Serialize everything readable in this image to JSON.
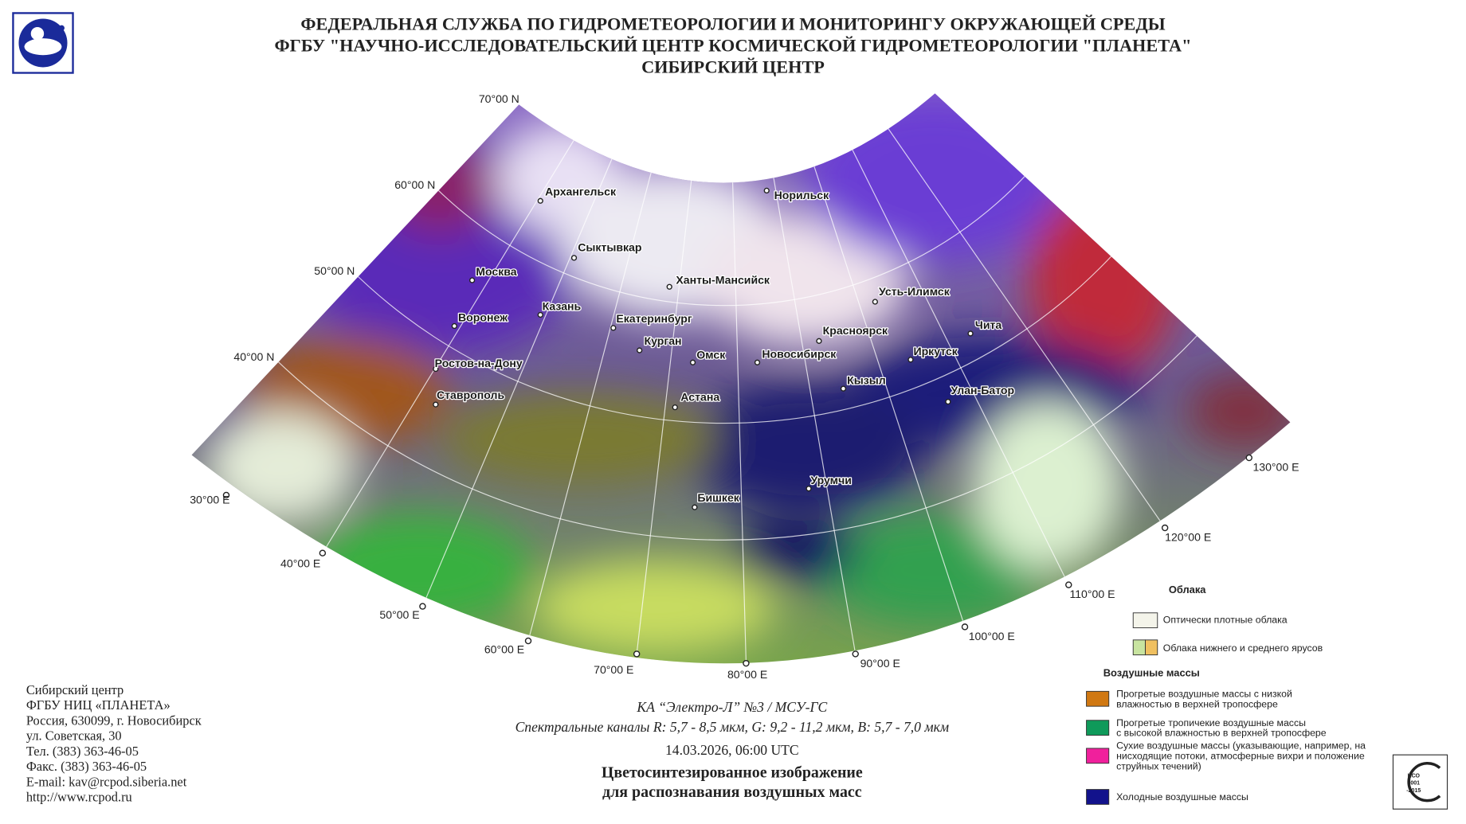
{
  "header": {
    "lines": [
      "ФЕДЕРАЛЬНАЯ СЛУЖБА ПО ГИДРОМЕТЕОРОЛОГИИ И МОНИТОРИНГУ ОКРУЖАЮЩЕЙ СРЕДЫ",
      "ФГБУ \"НАУЧНО-ИССЛЕДОВАТЕЛЬСКИЙ ЦЕНТР КОСМИЧЕСКОЙ ГИДРОМЕТЕОРОЛОГИИ \"ПЛАНЕТА\"",
      "СИБИРСКИЙ ЦЕНТР"
    ]
  },
  "map": {
    "latitudes": [
      "70°00 N",
      "60°00 N",
      "50°00 N",
      "40°00 N"
    ],
    "longitudes": [
      "30°00 E",
      "40°00 E",
      "50°00 E",
      "60°00 E",
      "70°00 E",
      "80°00 E",
      "90°00 E",
      "100°00 E",
      "110°00 E",
      "120°00 E",
      "130°00 E"
    ],
    "cities": [
      "Архангельск",
      "Сыктывкар",
      "Норильск",
      "Москва",
      "Ханты-Мансийск",
      "Усть-Илимск",
      "Казань",
      "Екатеринбург",
      "Воронеж",
      "Красноярск",
      "Чита",
      "Курган",
      "Омск",
      "Новосибирск",
      "Иркутск",
      "Ростов-на-Дону",
      "Кызыл",
      "Улан-Батор",
      "Ставрополь",
      "Астана",
      "Урумчи",
      "Бишкек"
    ]
  },
  "legend": {
    "clouds_title": "Облака",
    "clouds": [
      "Оптически плотные облака",
      "Облака нижнего и среднего ярусов"
    ],
    "air_masses_title": "Воздушные массы",
    "air_masses": [
      {
        "color": "#d07812",
        "lines": [
          "Прогретые воздушные массы с низкой",
          "влажностью в верхней тропосфере"
        ]
      },
      {
        "color": "#0f9a5a",
        "lines": [
          "Прогретые тропичекие воздушные массы",
          "с высокой влажностью в верхней тропосфере"
        ]
      },
      {
        "color": "#f0209c",
        "lines": [
          "Сухие воздушные массы (указывающие, например, на",
          "нисходящие потоки, атмосферные вихри и положение",
          "струйных течений)"
        ]
      },
      {
        "color": "#12128c",
        "lines": [
          "Холодные воздушные массы"
        ]
      }
    ]
  },
  "contact": [
    "Сибирский центр",
    "ФГБУ НИЦ «ПЛАНЕТА»",
    "Россия, 630099, г. Новосибирск",
    "ул. Советская, 30",
    "Тел. (383) 363-46-05",
    "Факс. (383) 363-46-05",
    "E-mail: kav@rcpod.siberia.net",
    "http://www.rcpod.ru"
  ],
  "caption": {
    "satellite": "КА “Электро-Л” №3 / МСУ-ГС",
    "channels": "Спектральные каналы R: 5,7 - 8,5 мкм, G: 9,2 - 11,2 мкм, B: 5,7 - 7,0 мкм",
    "datetime": "14.03.2026, 06:00 UTC",
    "title_lines": [
      "Цветосинтезированное изображение",
      "для распознавания воздушных масс"
    ]
  },
  "badge": {
    "lines": [
      "ИСО",
      "9001",
      "-2015"
    ]
  }
}
